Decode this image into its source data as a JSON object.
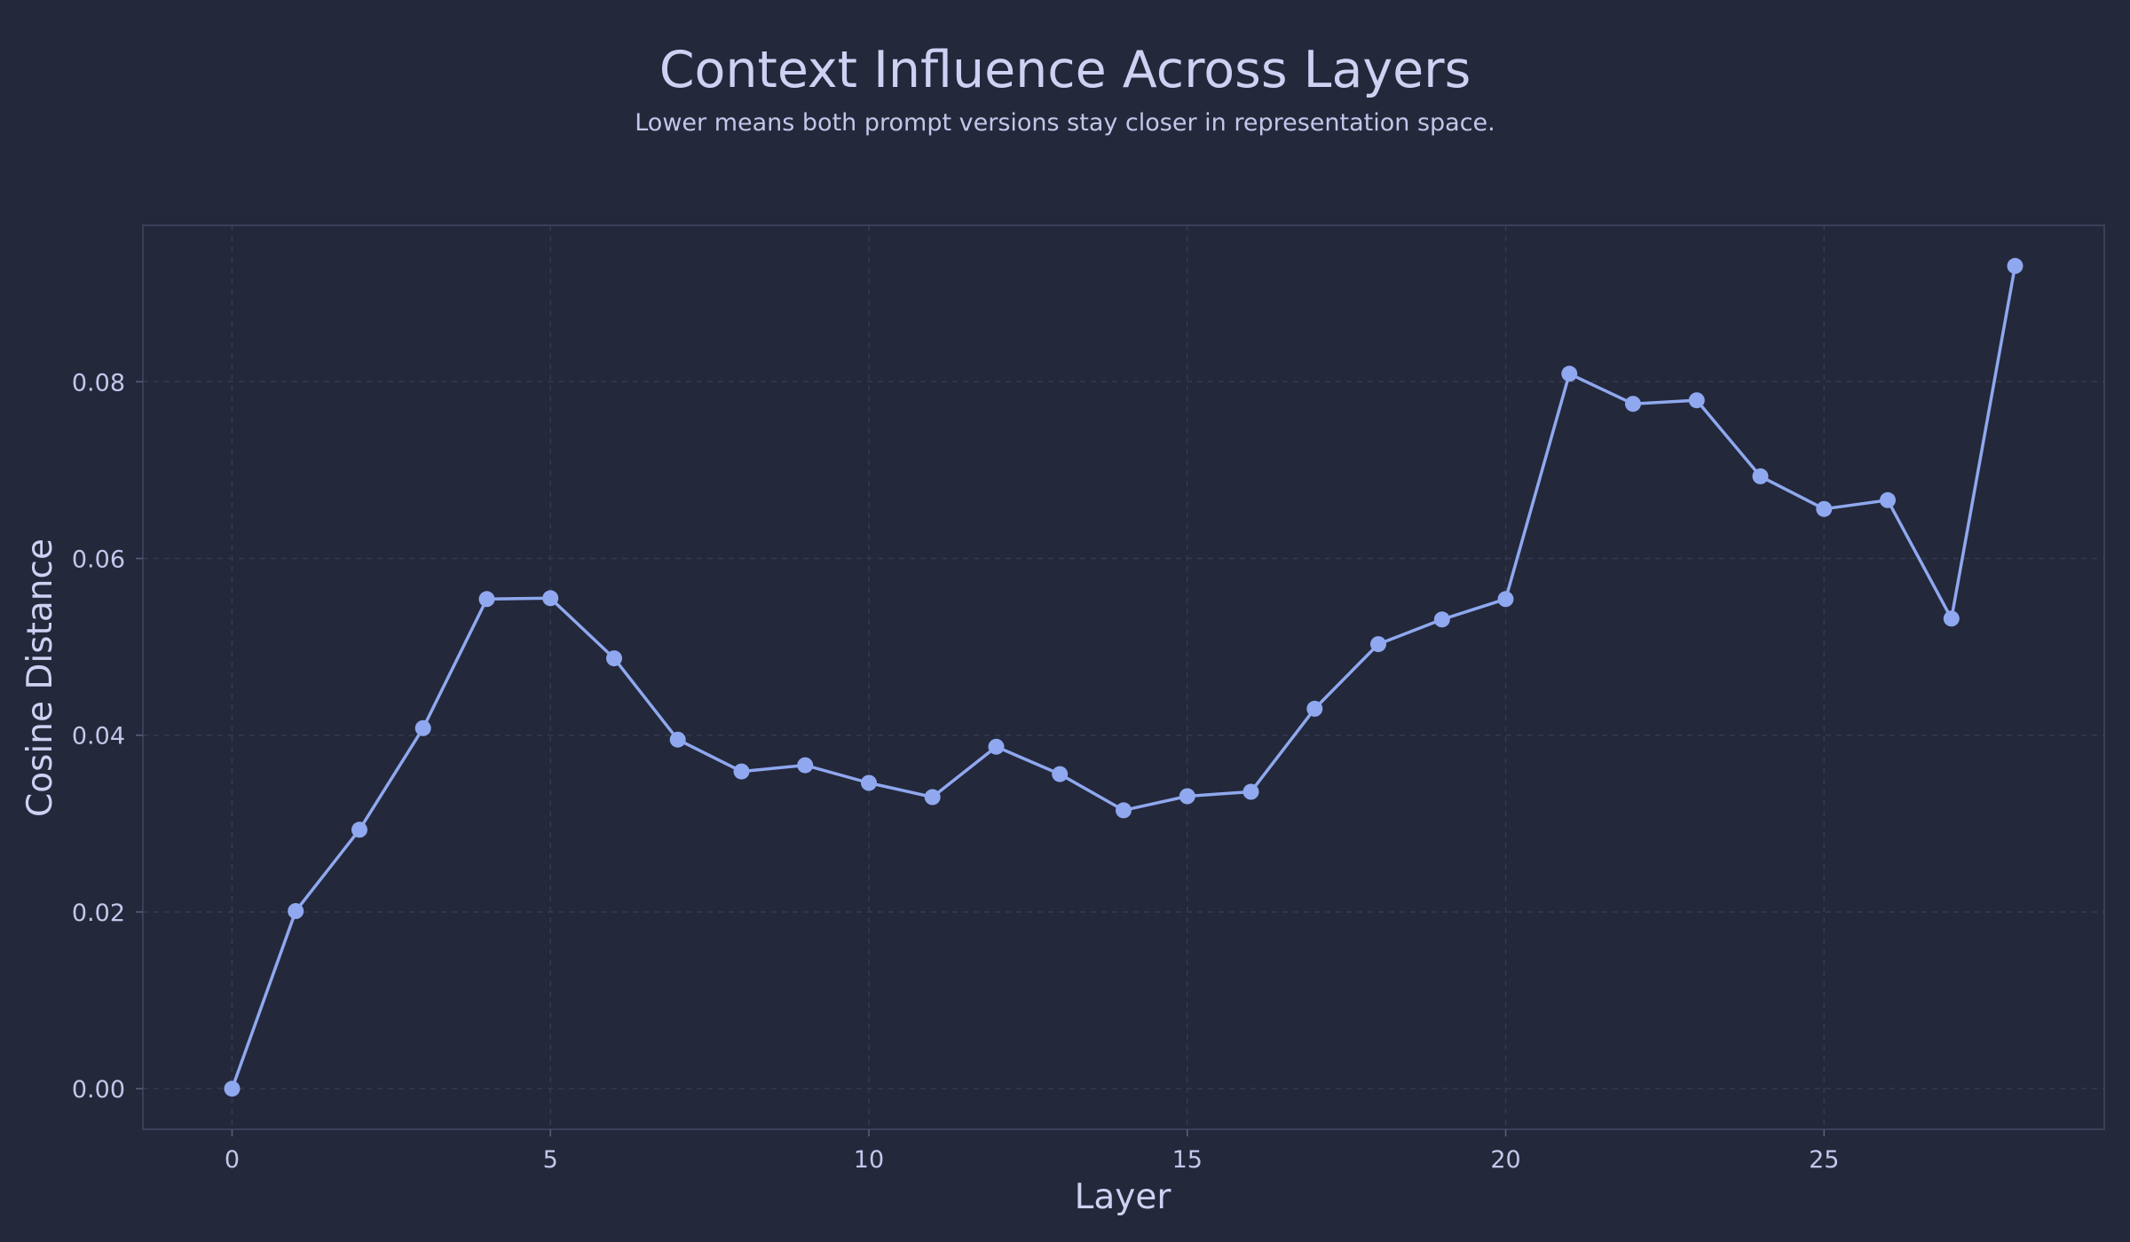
{
  "chart_data": {
    "type": "line",
    "title": "Context Influence Across Layers",
    "subtitle": "Lower means both prompt versions stay closer in representation space.",
    "xlabel": "Layer",
    "ylabel": "Cosine Distance",
    "xlim": [
      -1.4,
      29.4
    ],
    "ylim": [
      -0.0046,
      0.0977
    ],
    "x_ticks": [
      0,
      5,
      10,
      15,
      20,
      25
    ],
    "x_tick_labels": [
      "0",
      "5",
      "10",
      "15",
      "20",
      "25"
    ],
    "y_ticks": [
      0.0,
      0.02,
      0.04,
      0.06,
      0.08
    ],
    "y_tick_labels": [
      "0.00",
      "0.02",
      "0.04",
      "0.06",
      "0.08"
    ],
    "grid": true,
    "series": [
      {
        "color": "#8fa8ef",
        "x": [
          0,
          1,
          2,
          3,
          4,
          5,
          6,
          7,
          8,
          9,
          10,
          11,
          12,
          13,
          14,
          15,
          16,
          17,
          18,
          19,
          20,
          21,
          22,
          23,
          24,
          25,
          26,
          27,
          28
        ],
        "values": [
          0.0,
          0.0201,
          0.0293,
          0.0408,
          0.0554,
          0.0555,
          0.0487,
          0.0395,
          0.0359,
          0.0366,
          0.0346,
          0.033,
          0.0387,
          0.0356,
          0.0315,
          0.0331,
          0.0336,
          0.043,
          0.0503,
          0.0531,
          0.0554,
          0.0809,
          0.0775,
          0.0779,
          0.0693,
          0.0656,
          0.0666,
          0.0532,
          0.0931
        ]
      }
    ]
  }
}
